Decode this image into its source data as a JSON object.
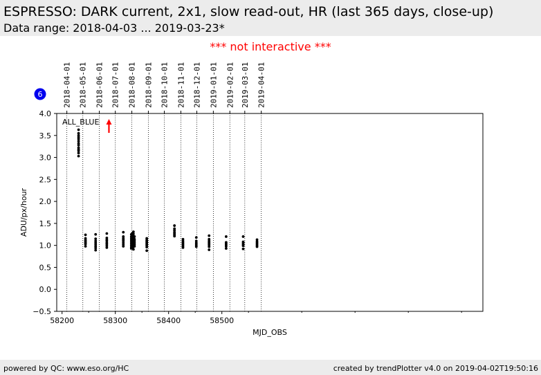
{
  "header": {
    "title": "ESPRESSO: DARK current, 2x1, slow read-out, HR (last 365 days, close-up)",
    "subtitle": "Data range: 2018-04-03 ... 2019-03-23*"
  },
  "notice": "*** not interactive ***",
  "badge": "6",
  "footer": {
    "left": "powered by QC: www.eso.org/HC",
    "right": "created by trendPlotter v4.0 on 2019-04-02T19:50:16"
  },
  "colors": {
    "points": "#000000",
    "outlier_arrow": "#ff0000",
    "badge": "#0000ee",
    "notice": "#ff0000"
  },
  "chart_data": {
    "type": "scatter",
    "series_label": "ALL_BLUE",
    "xlabel": "MJD_OBS",
    "ylabel": "ADU/px/hour",
    "xlim": [
      58190,
      58990
    ],
    "ylim": [
      -0.5,
      4.0
    ],
    "grid": "vertical dotted lines at month starts",
    "x_ticks": [
      58200,
      58300,
      58400,
      58500
    ],
    "y_ticks": [
      -0.5,
      0.0,
      0.5,
      1.0,
      1.5,
      2.0,
      2.5,
      3.0,
      3.5,
      4.0
    ],
    "x_tick_labels": [
      "58200",
      "58300",
      "58400",
      "58500"
    ],
    "y_tick_labels": [
      "−0.5",
      "0.0",
      "0.5",
      "1.0",
      "1.5",
      "2.0",
      "2.5",
      "3.0",
      "3.5",
      "4.0"
    ],
    "month_markers": [
      {
        "label": "2018-04-01",
        "x": 58209
      },
      {
        "label": "2018-05-01",
        "x": 58239
      },
      {
        "label": "2018-06-01",
        "x": 58270
      },
      {
        "label": "2018-07-01",
        "x": 58300
      },
      {
        "label": "2018-08-01",
        "x": 58331
      },
      {
        "label": "2018-09-01",
        "x": 58362
      },
      {
        "label": "2018-10-01",
        "x": 58392
      },
      {
        "label": "2018-11-01",
        "x": 58423
      },
      {
        "label": "2018-12-01",
        "x": 58453
      },
      {
        "label": "2019-01-01",
        "x": 58484
      },
      {
        "label": "2019-02-01",
        "x": 58515
      },
      {
        "label": "2019-03-01",
        "x": 58543
      },
      {
        "label": "2019-04-01",
        "x": 58574
      }
    ],
    "outliers_above": [
      {
        "x": 58288,
        "direction": "up"
      }
    ],
    "points": [
      {
        "x": 58231,
        "y": [
          3.63,
          3.55,
          3.5,
          3.46,
          3.42,
          3.37,
          3.32,
          3.28,
          3.22,
          3.18,
          3.15,
          3.1,
          3.03
        ]
      },
      {
        "x": 58244,
        "y": [
          1.24,
          1.16,
          1.12,
          1.09,
          1.06,
          1.03,
          0.98
        ]
      },
      {
        "x": 58263,
        "y": [
          1.25,
          1.15,
          1.1,
          1.06,
          1.02,
          0.98,
          0.94,
          0.89
        ]
      },
      {
        "x": 58284,
        "y": [
          1.27,
          1.17,
          1.13,
          1.1,
          1.06,
          1.03,
          0.99,
          0.95
        ]
      },
      {
        "x": 58315,
        "y": [
          1.3,
          1.2,
          1.16,
          1.13,
          1.1,
          1.06,
          1.02,
          0.98
        ]
      },
      {
        "x": 58330,
        "y": [
          1.25,
          1.2,
          1.16,
          1.12,
          1.08,
          1.04,
          1.0,
          0.96,
          0.93
        ]
      },
      {
        "x": 58332,
        "y": [
          1.28,
          1.22,
          1.18,
          1.14,
          1.1,
          1.06,
          1.02,
          0.98,
          0.94
        ]
      },
      {
        "x": 58334,
        "y": [
          1.31,
          1.26,
          1.21,
          1.17,
          1.13,
          1.09,
          1.05,
          1.01,
          0.97,
          0.91
        ]
      },
      {
        "x": 58336,
        "y": [
          1.2,
          1.14,
          1.1,
          1.06,
          1.02,
          0.98
        ]
      },
      {
        "x": 58359,
        "y": [
          1.16,
          1.12,
          1.09,
          1.06,
          1.03,
          1.0,
          0.96,
          0.88
        ]
      },
      {
        "x": 58411,
        "y": [
          1.45,
          1.38,
          1.34,
          1.3,
          1.27,
          1.24,
          1.21
        ]
      },
      {
        "x": 58427,
        "y": [
          1.14,
          1.1,
          1.07,
          1.04,
          1.01,
          0.98,
          0.95
        ]
      },
      {
        "x": 58452,
        "y": [
          1.18,
          1.1,
          1.06,
          1.03,
          1.0,
          0.97
        ]
      },
      {
        "x": 58476,
        "y": [
          1.22,
          1.14,
          1.1,
          1.07,
          1.04,
          1.01,
          0.97,
          0.9
        ]
      },
      {
        "x": 58508,
        "y": [
          1.2,
          1.07,
          1.04,
          1.01,
          0.98,
          0.93
        ]
      },
      {
        "x": 58540,
        "y": [
          1.2,
          1.08,
          1.05,
          1.02,
          0.99,
          0.92
        ]
      },
      {
        "x": 58566,
        "y": [
          1.13,
          1.09,
          1.06,
          1.03,
          1.0,
          0.97
        ]
      }
    ]
  }
}
